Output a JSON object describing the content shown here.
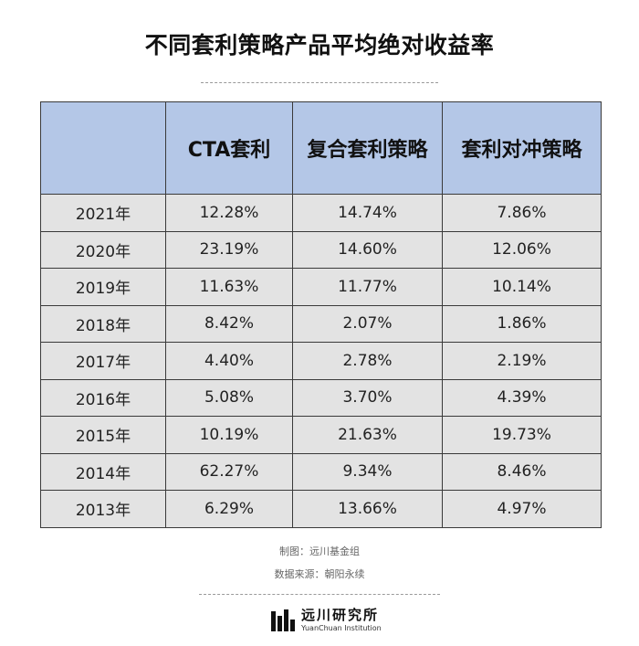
{
  "title": "不同套利策略产品平均绝对收益率",
  "table": {
    "headers": [
      "",
      "CTA套利",
      "复合套利策略",
      "套利对冲策略"
    ],
    "rows": [
      [
        "2021年",
        "12.28%",
        "14.74%",
        "7.86%"
      ],
      [
        "2020年",
        "23.19%",
        "14.60%",
        "12.06%"
      ],
      [
        "2019年",
        "11.63%",
        "11.77%",
        "10.14%"
      ],
      [
        "2018年",
        "8.42%",
        "2.07%",
        "1.86%"
      ],
      [
        "2017年",
        "4.40%",
        "2.78%",
        "2.19%"
      ],
      [
        "2016年",
        "5.08%",
        "3.70%",
        "4.39%"
      ],
      [
        "2015年",
        "10.19%",
        "21.63%",
        "19.73%"
      ],
      [
        "2014年",
        "62.27%",
        "9.34%",
        "8.46%"
      ],
      [
        "2013年",
        "6.29%",
        "13.66%",
        "4.97%"
      ]
    ]
  },
  "credits": {
    "made_by": "制图：远川基金组",
    "source": "数据来源：朝阳永续"
  },
  "logo": {
    "icon": "yuanchuan-logo-icon",
    "name_cn": "远川研究所",
    "name_en": "YuanChuan Institution"
  },
  "colors": {
    "header_bg": "#b4c7e7",
    "cell_bg": "#e3e3e3",
    "border": "#3a3a3a"
  }
}
